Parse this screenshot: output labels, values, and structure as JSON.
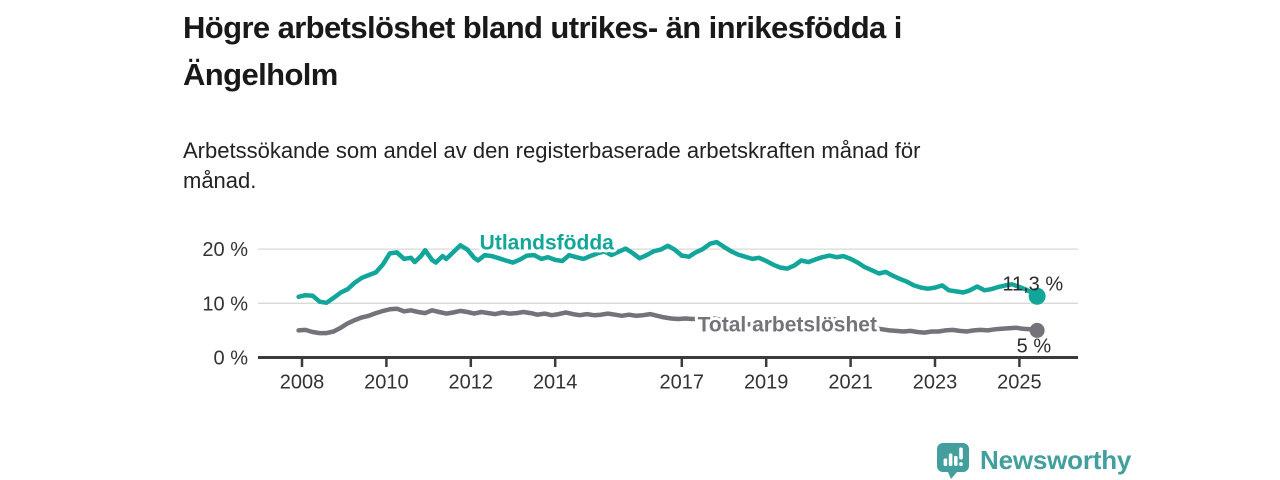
{
  "header": {
    "title_lines": [
      "Högre arbetslöshet bland utrikes- än inrikesfödda i",
      "Ängelholm"
    ],
    "subtitle_lines": [
      "Arbetssökande som andel av den registerbaserade arbetskraften månad för",
      "månad."
    ]
  },
  "footer": {
    "brand": "Newsworthy",
    "brand_color": "#429f9e",
    "logo_icon": "newsworthy-bars-speech-bubble-icon"
  },
  "colors": {
    "foreign_born_line": "#12a69b",
    "total_line": "#757379",
    "axis": "#3b3b3b",
    "grid": "#d9d9d9",
    "tick_text": "#333333",
    "annotation_text": "#2d2d2d"
  },
  "chart_data": {
    "type": "line",
    "title": "Högre arbetslöshet bland utrikes- än inrikesfödda i Ängelholm",
    "subtitle": "Arbetssökande som andel av den registerbaserade arbetskraften månad för månad.",
    "xlabel": "",
    "ylabel": "",
    "unit": "%",
    "grid": "horizontal",
    "legend": "inline-labels",
    "x_axis": {
      "ticks": [
        2008,
        2010,
        2012,
        2014,
        2017,
        2019,
        2021,
        2023,
        2025
      ],
      "tick_labels": [
        "2008",
        "2010",
        "2012",
        "2014",
        "2017",
        "2019",
        "2021",
        "2023",
        "2025"
      ],
      "range": [
        2007.0,
        2026.4
      ]
    },
    "y_axis": {
      "ticks": [
        0,
        10,
        20
      ],
      "tick_labels": [
        "0 %",
        "10 %",
        "20 %"
      ],
      "range": [
        0,
        23
      ]
    },
    "series": [
      {
        "name": "Utlandsfödda",
        "color": "#12a69b",
        "end_label": "11,3 %",
        "end_value": 11.3,
        "label_pos": {
          "year": 2013.8,
          "value": 21.2
        },
        "points": [
          [
            2007.92,
            11.2
          ],
          [
            2008.08,
            11.5
          ],
          [
            2008.25,
            11.4
          ],
          [
            2008.42,
            10.3
          ],
          [
            2008.58,
            10.1
          ],
          [
            2008.75,
            11.0
          ],
          [
            2008.92,
            12.0
          ],
          [
            2009.08,
            12.6
          ],
          [
            2009.25,
            13.8
          ],
          [
            2009.42,
            14.7
          ],
          [
            2009.58,
            15.2
          ],
          [
            2009.75,
            15.7
          ],
          [
            2009.92,
            17.2
          ],
          [
            2010.08,
            19.2
          ],
          [
            2010.25,
            19.4
          ],
          [
            2010.42,
            18.2
          ],
          [
            2010.58,
            18.4
          ],
          [
            2010.67,
            17.6
          ],
          [
            2010.83,
            18.8
          ],
          [
            2010.92,
            19.8
          ],
          [
            2011.08,
            18.0
          ],
          [
            2011.17,
            17.5
          ],
          [
            2011.33,
            18.7
          ],
          [
            2011.42,
            18.2
          ],
          [
            2011.58,
            19.4
          ],
          [
            2011.75,
            20.7
          ],
          [
            2011.92,
            19.9
          ],
          [
            2012.08,
            18.4
          ],
          [
            2012.17,
            17.9
          ],
          [
            2012.33,
            18.9
          ],
          [
            2012.5,
            18.7
          ],
          [
            2012.67,
            18.3
          ],
          [
            2012.83,
            17.9
          ],
          [
            2013.0,
            17.5
          ],
          [
            2013.17,
            18.1
          ],
          [
            2013.33,
            18.8
          ],
          [
            2013.5,
            18.9
          ],
          [
            2013.67,
            18.2
          ],
          [
            2013.83,
            18.5
          ],
          [
            2014.0,
            18.0
          ],
          [
            2014.17,
            17.8
          ],
          [
            2014.33,
            18.9
          ],
          [
            2014.5,
            18.5
          ],
          [
            2014.67,
            18.2
          ],
          [
            2014.83,
            18.7
          ],
          [
            2015.0,
            19.2
          ],
          [
            2015.17,
            19.6
          ],
          [
            2015.33,
            18.9
          ],
          [
            2015.5,
            19.5
          ],
          [
            2015.67,
            20.1
          ],
          [
            2015.83,
            19.3
          ],
          [
            2016.0,
            18.3
          ],
          [
            2016.17,
            18.9
          ],
          [
            2016.33,
            19.6
          ],
          [
            2016.5,
            19.9
          ],
          [
            2016.67,
            20.6
          ],
          [
            2016.83,
            19.9
          ],
          [
            2017.0,
            18.8
          ],
          [
            2017.17,
            18.6
          ],
          [
            2017.33,
            19.4
          ],
          [
            2017.5,
            20.0
          ],
          [
            2017.67,
            21.0
          ],
          [
            2017.83,
            21.3
          ],
          [
            2018.0,
            20.4
          ],
          [
            2018.17,
            19.6
          ],
          [
            2018.33,
            19.0
          ],
          [
            2018.5,
            18.6
          ],
          [
            2018.67,
            18.2
          ],
          [
            2018.83,
            18.4
          ],
          [
            2019.0,
            17.8
          ],
          [
            2019.17,
            17.1
          ],
          [
            2019.33,
            16.6
          ],
          [
            2019.5,
            16.4
          ],
          [
            2019.67,
            17.0
          ],
          [
            2019.83,
            17.9
          ],
          [
            2020.0,
            17.6
          ],
          [
            2020.17,
            18.1
          ],
          [
            2020.33,
            18.5
          ],
          [
            2020.5,
            18.8
          ],
          [
            2020.67,
            18.5
          ],
          [
            2020.83,
            18.7
          ],
          [
            2021.0,
            18.2
          ],
          [
            2021.17,
            17.5
          ],
          [
            2021.33,
            16.7
          ],
          [
            2021.5,
            16.1
          ],
          [
            2021.67,
            15.5
          ],
          [
            2021.83,
            15.8
          ],
          [
            2022.0,
            15.1
          ],
          [
            2022.17,
            14.5
          ],
          [
            2022.33,
            14.0
          ],
          [
            2022.5,
            13.3
          ],
          [
            2022.67,
            12.9
          ],
          [
            2022.83,
            12.7
          ],
          [
            2023.0,
            12.9
          ],
          [
            2023.17,
            13.3
          ],
          [
            2023.33,
            12.4
          ],
          [
            2023.5,
            12.2
          ],
          [
            2023.67,
            12.0
          ],
          [
            2023.83,
            12.4
          ],
          [
            2024.0,
            13.1
          ],
          [
            2024.17,
            12.4
          ],
          [
            2024.33,
            12.6
          ],
          [
            2024.5,
            13.0
          ],
          [
            2024.67,
            13.3
          ],
          [
            2024.83,
            13.5
          ],
          [
            2025.0,
            13.0
          ],
          [
            2025.17,
            12.5
          ],
          [
            2025.33,
            11.8
          ],
          [
            2025.42,
            11.3
          ]
        ]
      },
      {
        "name": "Total arbetslöshet",
        "color": "#757379",
        "end_label": "5 %",
        "end_value": 5.0,
        "label_pos": {
          "year": 2019.5,
          "value": 6.1
        },
        "points": [
          [
            2007.92,
            5.0
          ],
          [
            2008.08,
            5.1
          ],
          [
            2008.25,
            4.7
          ],
          [
            2008.42,
            4.5
          ],
          [
            2008.58,
            4.5
          ],
          [
            2008.75,
            4.8
          ],
          [
            2008.92,
            5.5
          ],
          [
            2009.08,
            6.3
          ],
          [
            2009.25,
            6.9
          ],
          [
            2009.42,
            7.4
          ],
          [
            2009.58,
            7.7
          ],
          [
            2009.75,
            8.2
          ],
          [
            2009.92,
            8.6
          ],
          [
            2010.08,
            8.9
          ],
          [
            2010.25,
            9.0
          ],
          [
            2010.42,
            8.5
          ],
          [
            2010.58,
            8.7
          ],
          [
            2010.75,
            8.4
          ],
          [
            2010.92,
            8.2
          ],
          [
            2011.08,
            8.7
          ],
          [
            2011.25,
            8.4
          ],
          [
            2011.42,
            8.1
          ],
          [
            2011.58,
            8.3
          ],
          [
            2011.75,
            8.6
          ],
          [
            2011.92,
            8.4
          ],
          [
            2012.08,
            8.1
          ],
          [
            2012.25,
            8.4
          ],
          [
            2012.42,
            8.2
          ],
          [
            2012.58,
            8.0
          ],
          [
            2012.75,
            8.3
          ],
          [
            2012.92,
            8.1
          ],
          [
            2013.08,
            8.2
          ],
          [
            2013.25,
            8.4
          ],
          [
            2013.42,
            8.2
          ],
          [
            2013.58,
            7.9
          ],
          [
            2013.75,
            8.1
          ],
          [
            2013.92,
            7.8
          ],
          [
            2014.08,
            8.0
          ],
          [
            2014.25,
            8.3
          ],
          [
            2014.42,
            8.0
          ],
          [
            2014.58,
            7.8
          ],
          [
            2014.75,
            8.0
          ],
          [
            2014.92,
            7.8
          ],
          [
            2015.08,
            7.9
          ],
          [
            2015.25,
            8.1
          ],
          [
            2015.42,
            7.9
          ],
          [
            2015.58,
            7.7
          ],
          [
            2015.75,
            7.9
          ],
          [
            2015.92,
            7.7
          ],
          [
            2016.08,
            7.8
          ],
          [
            2016.25,
            8.0
          ],
          [
            2016.42,
            7.7
          ],
          [
            2016.58,
            7.4
          ],
          [
            2016.75,
            7.2
          ],
          [
            2016.92,
            7.1
          ],
          [
            2017.08,
            7.2
          ],
          [
            2017.25,
            7.1
          ],
          [
            2017.42,
            7.2
          ],
          [
            2017.58,
            7.4
          ],
          [
            2017.75,
            7.2
          ],
          [
            2017.92,
            7.0
          ],
          [
            2018.08,
            6.6
          ],
          [
            2018.25,
            6.4
          ],
          [
            2018.42,
            6.2
          ],
          [
            2018.58,
            6.1
          ],
          [
            2018.75,
            6.2
          ],
          [
            2018.92,
            6.1
          ],
          [
            2019.08,
            5.9
          ],
          [
            2019.25,
            5.7
          ],
          [
            2019.42,
            5.8
          ],
          [
            2019.58,
            6.0
          ],
          [
            2019.75,
            6.2
          ],
          [
            2019.92,
            6.3
          ],
          [
            2020.08,
            6.8
          ],
          [
            2020.25,
            7.2
          ],
          [
            2020.42,
            7.3
          ],
          [
            2020.58,
            7.1
          ],
          [
            2020.75,
            6.9
          ],
          [
            2020.92,
            6.8
          ],
          [
            2021.08,
            6.5
          ],
          [
            2021.25,
            6.1
          ],
          [
            2021.42,
            5.7
          ],
          [
            2021.58,
            5.4
          ],
          [
            2021.75,
            5.2
          ],
          [
            2021.92,
            5.0
          ],
          [
            2022.08,
            4.9
          ],
          [
            2022.25,
            4.8
          ],
          [
            2022.42,
            4.9
          ],
          [
            2022.58,
            4.7
          ],
          [
            2022.75,
            4.6
          ],
          [
            2022.92,
            4.8
          ],
          [
            2023.08,
            4.8
          ],
          [
            2023.25,
            5.0
          ],
          [
            2023.42,
            5.1
          ],
          [
            2023.58,
            4.9
          ],
          [
            2023.75,
            4.8
          ],
          [
            2023.92,
            5.0
          ],
          [
            2024.08,
            5.1
          ],
          [
            2024.25,
            5.0
          ],
          [
            2024.42,
            5.2
          ],
          [
            2024.58,
            5.3
          ],
          [
            2024.75,
            5.4
          ],
          [
            2024.92,
            5.5
          ],
          [
            2025.08,
            5.3
          ],
          [
            2025.25,
            5.2
          ],
          [
            2025.42,
            5.0
          ]
        ]
      }
    ]
  }
}
